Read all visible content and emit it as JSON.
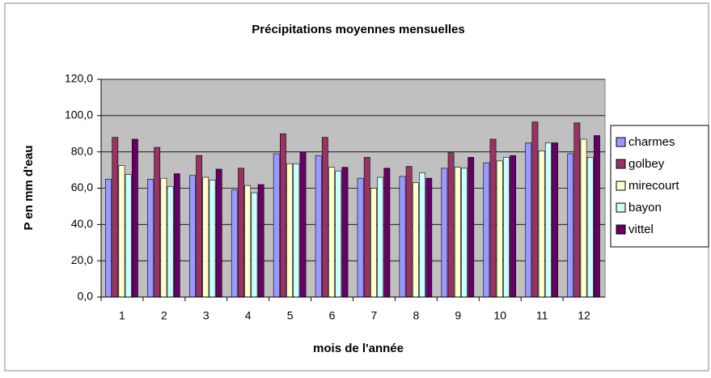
{
  "chart_data": {
    "type": "bar",
    "title": "Précipitations moyennes mensuelles",
    "xlabel": "mois de l'année",
    "ylabel": "P en mm d'eau",
    "categories": [
      "1",
      "2",
      "3",
      "4",
      "5",
      "6",
      "7",
      "8",
      "9",
      "10",
      "11",
      "12"
    ],
    "series": [
      {
        "name": "charmes",
        "color": "#9999ff",
        "values": [
          65,
          65,
          67,
          59,
          79,
          78,
          65.5,
          66.5,
          71,
          74,
          85,
          79
        ]
      },
      {
        "name": "golbey",
        "color": "#993366",
        "values": [
          88,
          82.5,
          78,
          71,
          90,
          88,
          77,
          72,
          79.5,
          87,
          96.5,
          96
        ]
      },
      {
        "name": "mirecourt",
        "color": "#ffffcc",
        "values": [
          72.5,
          65.5,
          66,
          61.5,
          73.5,
          71.5,
          60,
          63,
          71.5,
          75,
          80.5,
          87
        ]
      },
      {
        "name": "bayon",
        "color": "#ccffff",
        "values": [
          67.5,
          61,
          64.5,
          57.5,
          73.5,
          69.5,
          66,
          68.5,
          71,
          77,
          85,
          77
        ]
      },
      {
        "name": "vittel",
        "color": "#660066",
        "values": [
          87,
          68,
          70.5,
          62,
          80,
          71.5,
          71,
          65.5,
          77,
          78,
          85,
          89
        ]
      }
    ],
    "ylim": [
      0,
      120
    ],
    "yticks": [
      {
        "value": 0,
        "label": "0,0"
      },
      {
        "value": 20,
        "label": "20,0"
      },
      {
        "value": 40,
        "label": "40,0"
      },
      {
        "value": 60,
        "label": "60,0"
      },
      {
        "value": 80,
        "label": "80,0"
      },
      {
        "value": 100,
        "label": "100,0"
      },
      {
        "value": 120,
        "label": "120,0"
      }
    ],
    "grid": true,
    "legend": "right"
  }
}
